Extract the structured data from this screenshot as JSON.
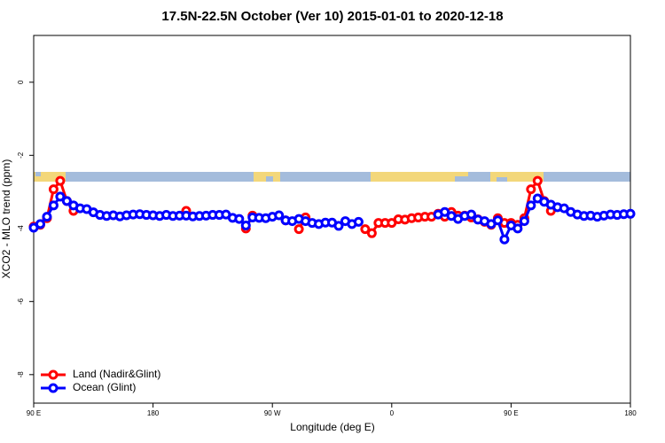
{
  "chart_data": {
    "type": "line",
    "title": "17.5N-22.5N October (Ver 10)   2015-01-01 to 2020-12-18",
    "x_label": "Longitude (deg E)",
    "y_label": "XCO2 - MLO trend (ppm)",
    "x": [
      90,
      95,
      100,
      105,
      110,
      115,
      120,
      125,
      130,
      135,
      140,
      145,
      150,
      155,
      160,
      165,
      170,
      175,
      180,
      185,
      190,
      195,
      200,
      205,
      210,
      215,
      220,
      225,
      230,
      235,
      240,
      245,
      250,
      255,
      260,
      265,
      270,
      275,
      280,
      285,
      290,
      295,
      300,
      305,
      310,
      315,
      320,
      325,
      330,
      335,
      340,
      345,
      350,
      355,
      360,
      365,
      370,
      375,
      380,
      385,
      390,
      395,
      400,
      405,
      410,
      415,
      420,
      425,
      430,
      435,
      440,
      445,
      450,
      455,
      460,
      465,
      470,
      475,
      480,
      485,
      490,
      495,
      500,
      505,
      510,
      515,
      520,
      525,
      530,
      535,
      540
    ],
    "series": [
      {
        "name": "Land (Nadir&Glint)",
        "color": "#ff0000",
        "values": [
          -3.95,
          -3.9,
          -3.72,
          -2.93,
          -2.7,
          -3.25,
          -3.52,
          null,
          null,
          null,
          null,
          null,
          null,
          null,
          null,
          null,
          null,
          null,
          null,
          null,
          null,
          null,
          null,
          -3.52,
          null,
          null,
          null,
          null,
          null,
          null,
          null,
          null,
          -4.0,
          -3.65,
          null,
          null,
          null,
          null,
          -3.78,
          null,
          -4.02,
          -3.7,
          null,
          null,
          null,
          null,
          null,
          null,
          null,
          null,
          -4.02,
          -4.13,
          -3.85,
          -3.85,
          -3.85,
          -3.75,
          -3.76,
          -3.72,
          -3.7,
          -3.68,
          -3.68,
          -3.6,
          -3.68,
          -3.55,
          -3.65,
          -3.65,
          -3.7,
          -3.75,
          -3.82,
          -3.9,
          -3.72,
          -3.85,
          -3.85,
          -3.9,
          -3.72,
          -2.93,
          -2.7,
          -3.25,
          -3.52,
          null,
          null,
          null,
          null,
          null,
          null,
          null,
          null,
          null,
          null,
          null,
          null
        ]
      },
      {
        "name": "Ocean (Glint)",
        "color": "#0000ff",
        "values": [
          -3.98,
          -3.88,
          -3.68,
          -3.37,
          -3.13,
          -3.25,
          -3.37,
          -3.45,
          -3.47,
          -3.56,
          -3.63,
          -3.66,
          -3.64,
          -3.67,
          -3.64,
          -3.62,
          -3.61,
          -3.63,
          -3.64,
          -3.66,
          -3.63,
          -3.66,
          -3.65,
          -3.65,
          -3.67,
          -3.66,
          -3.65,
          -3.63,
          -3.63,
          -3.62,
          -3.71,
          -3.74,
          -3.92,
          -3.7,
          -3.71,
          -3.72,
          -3.68,
          -3.64,
          -3.78,
          -3.8,
          -3.74,
          -3.8,
          -3.85,
          -3.88,
          -3.84,
          -3.84,
          -3.93,
          -3.8,
          -3.88,
          -3.82,
          null,
          null,
          null,
          null,
          null,
          null,
          null,
          null,
          null,
          null,
          null,
          -3.62,
          -3.55,
          -3.66,
          -3.74,
          -3.66,
          -3.62,
          -3.76,
          -3.8,
          -3.88,
          -3.78,
          -4.3,
          -3.92,
          -4.0,
          -3.8,
          -3.37,
          -3.18,
          -3.27,
          -3.35,
          -3.42,
          -3.45,
          -3.55,
          -3.62,
          -3.66,
          -3.65,
          -3.68,
          -3.65,
          -3.62,
          -3.63,
          -3.61,
          -3.6
        ]
      }
    ],
    "xlim": [
      90,
      540
    ],
    "xticks": [
      {
        "value": 90,
        "label": "90 E"
      },
      180,
      {
        "value": 270,
        "label": "90 W"
      },
      {
        "value": 360,
        "label": "0"
      },
      {
        "value": 450,
        "label": "90 E"
      },
      {
        "value": 540,
        "label": "180"
      }
    ],
    "ylim": [
      -8.78,
      1.28
    ],
    "yticks": [
      0,
      -2,
      -4,
      -6,
      -8
    ],
    "legend": "bottom-left"
  }
}
